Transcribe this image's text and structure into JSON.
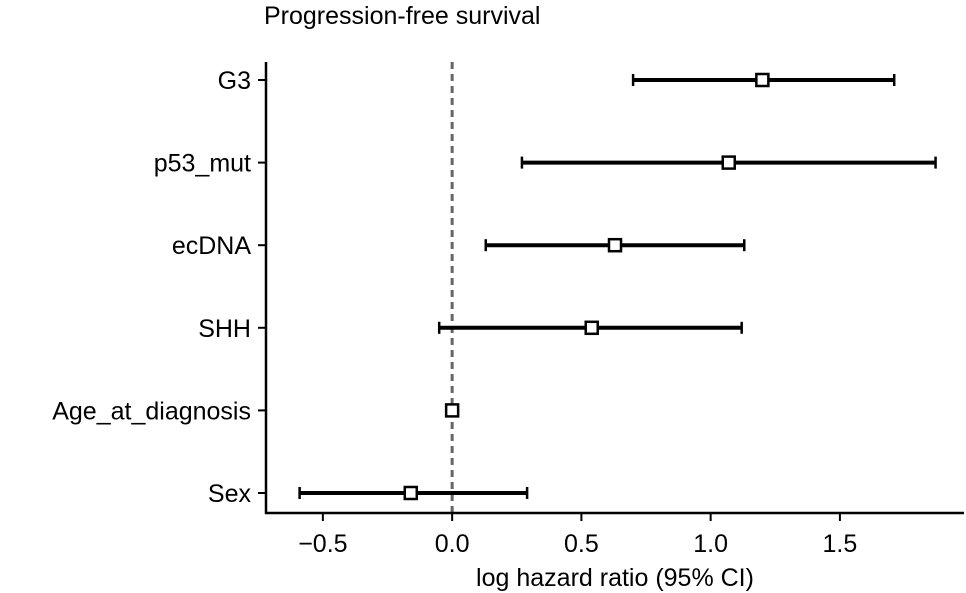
{
  "chart_data": {
    "type": "forest",
    "title": "Progression-free survival",
    "xlabel": "log hazard ratio (95% CI)",
    "ylabel": "",
    "xlim": [
      -0.72,
      1.98
    ],
    "xticks": [
      -0.5,
      0.0,
      0.5,
      1.0,
      1.5
    ],
    "xtick_labels": [
      "−0.5",
      "0.0",
      "0.5",
      "1.0",
      "1.5"
    ],
    "reference_line": 0.0,
    "categories": [
      "G3",
      "p53_mut",
      "ecDNA",
      "SHH",
      "Age_at_diagnosis",
      "Sex"
    ],
    "estimates": [
      1.2,
      1.07,
      0.63,
      0.54,
      0.0,
      -0.16
    ],
    "lower": [
      0.7,
      0.27,
      0.13,
      -0.05,
      -0.01,
      -0.59
    ],
    "upper": [
      1.71,
      1.87,
      1.13,
      1.12,
      0.01,
      0.29
    ],
    "grid": false,
    "colors": {
      "marker_face": "#ffffff",
      "marker_edge": "#000000",
      "ci": "#000000",
      "reference_line": "#666666"
    }
  }
}
